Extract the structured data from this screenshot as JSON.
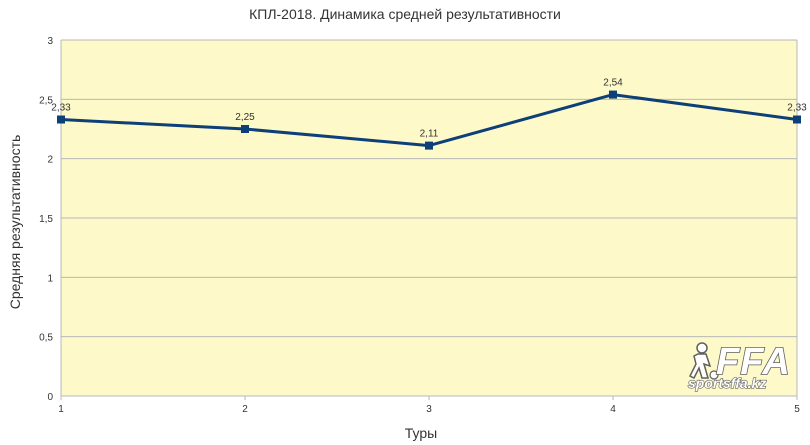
{
  "colors": {
    "plot_background": "#fdf9c8",
    "gridline": "#b8b8b8",
    "series": "#0d3f78",
    "text": "#333333"
  },
  "chart_data": {
    "type": "line",
    "title": "КПЛ-2018. Динамика средней результативности",
    "xlabel": "Туры",
    "ylabel": "Средняя результативность",
    "x": [
      1,
      2,
      3,
      4,
      5
    ],
    "x_tick_labels": [
      "1",
      "2",
      "3",
      "4",
      "5"
    ],
    "y_tick_values": [
      0,
      0.5,
      1,
      1.5,
      2,
      2.5,
      3
    ],
    "y_tick_labels": [
      "0",
      "0,5",
      "1",
      "1,5",
      "2",
      "2,5",
      "3"
    ],
    "ylim": [
      0,
      3
    ],
    "grid": true,
    "marker": "square",
    "series": [
      {
        "values": [
          2.33,
          2.25,
          2.11,
          2.54,
          2.33
        ],
        "data_labels": [
          "2,33",
          "2,25",
          "2,11",
          "2,54",
          "2,33"
        ]
      }
    ]
  },
  "watermark": {
    "logo_text": "FFA",
    "site_text": "sportsffa.kz",
    "icon": "football-player-icon"
  }
}
